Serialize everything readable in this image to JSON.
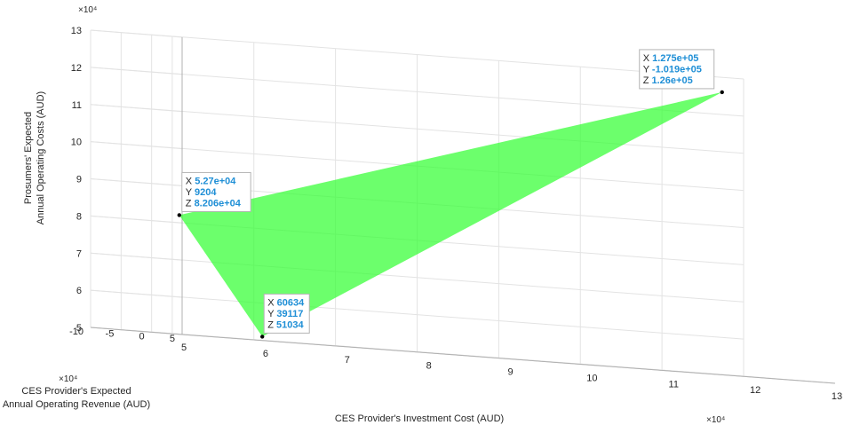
{
  "chart_data": {
    "type": "surface-3d",
    "title": "",
    "xlabel": "CES Provider's Investment Cost (AUD)",
    "ylabel_lines": [
      "CES Provider's Expected",
      "Annual Operating Revenue (AUD)"
    ],
    "zlabel_lines": [
      "Prosumers' Expected",
      "Annual Operating Costs (AUD)"
    ],
    "x_exponent": "×10⁴",
    "y_exponent": "×10⁴",
    "z_exponent": "×10⁴",
    "x_ticks": [
      "5",
      "6",
      "7",
      "8",
      "9",
      "10",
      "11",
      "12",
      "13"
    ],
    "y_ticks": [
      "5",
      "0",
      "-5",
      "-10"
    ],
    "z_ticks": [
      "5",
      "6",
      "7",
      "8",
      "9",
      "10",
      "11",
      "12",
      "13"
    ],
    "xlim": [
      50000,
      130000
    ],
    "ylim": [
      -100000,
      50000
    ],
    "zlim": [
      50000,
      130000
    ],
    "grid": true,
    "surface_color": "#33ff33",
    "marker_color": "#000000",
    "datatip_value_color": "#1f8fd6",
    "points": [
      {
        "x": 52700,
        "y": 9204,
        "z": 82060
      },
      {
        "x": 60634,
        "y": 39117,
        "z": 51034
      },
      {
        "x": 127500,
        "y": -101900,
        "z": 126000
      }
    ],
    "datatips": [
      {
        "x": "5.27e+04",
        "y": "9204",
        "z": "8.206e+04"
      },
      {
        "x": "60634",
        "y": "39117",
        "z": "51034"
      },
      {
        "x": "1.275e+05",
        "y": "-1.019e+05",
        "z": "1.26e+05"
      }
    ],
    "datatip_keys": {
      "x": "X",
      "y": "Y",
      "z": "Z"
    }
  }
}
